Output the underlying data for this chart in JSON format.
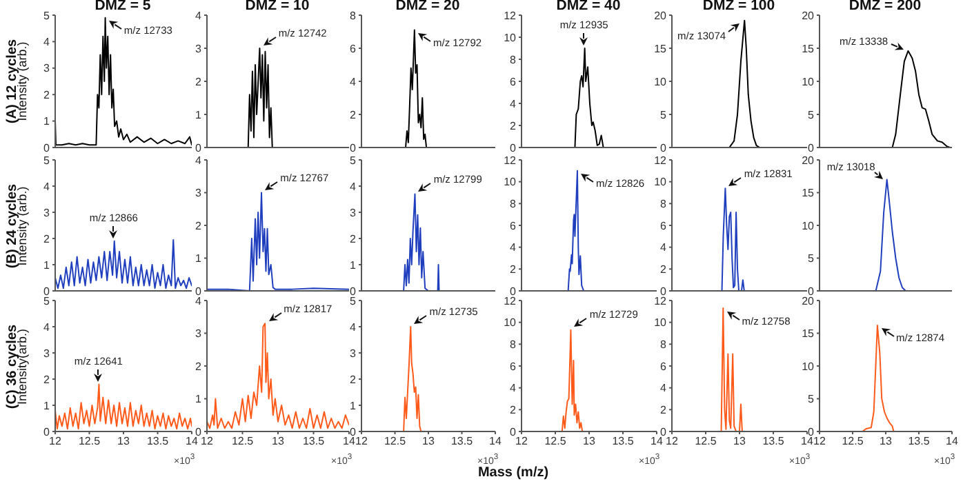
{
  "chart_data": [
    {
      "type": "line",
      "title": "DMZ = 5",
      "ylabel": "Intensity (arb.)",
      "color": "#000000",
      "xlim": [
        12,
        14
      ],
      "xticks": [
        12,
        12.5,
        13,
        13.5,
        14
      ],
      "ylim": [
        0,
        5
      ],
      "yticks": [
        0,
        1,
        2,
        3,
        4,
        5
      ],
      "tick_labels": "y",
      "annotations": [
        {
          "text": "m/z 12733",
          "x": 12.733,
          "y": 4.9
        },
        "(A) 12 cycles"
      ],
      "x": [
        12,
        12.01,
        12.1,
        12.2,
        12.3,
        12.4,
        12.5,
        12.6,
        12.62,
        12.64,
        12.66,
        12.68,
        12.7,
        12.72,
        12.733,
        12.75,
        12.77,
        12.79,
        12.81,
        12.83,
        12.85,
        12.87,
        12.9,
        12.93,
        12.96,
        13,
        13.05,
        13.1,
        13.2,
        13.3,
        13.4,
        13.5,
        13.6,
        13.7,
        13.8,
        13.9,
        13.97,
        14
      ],
      "values": [
        1,
        0.1,
        0.1,
        0.15,
        0.1,
        0.15,
        0.1,
        0.1,
        2,
        1.5,
        3.5,
        2,
        4.2,
        2.5,
        4.9,
        3,
        4.2,
        2,
        3.5,
        1.5,
        2.2,
        0.8,
        1,
        0.4,
        0.7,
        0.3,
        0.5,
        0.2,
        0.4,
        0.2,
        0.35,
        0.15,
        0.3,
        0.15,
        0.25,
        0.15,
        0.4,
        0.1
      ]
    },
    {
      "type": "line",
      "title": "DMZ = 10",
      "color": "#000000",
      "xlim": [
        12,
        14
      ],
      "xticks": [
        12,
        12.5,
        13,
        13.5,
        14
      ],
      "ylim": [
        0,
        4
      ],
      "yticks": [
        0,
        1,
        2,
        3,
        4
      ],
      "tick_labels": "y",
      "annotations": [
        {
          "text": "m/z 12742",
          "x": 12.742,
          "y": 3
        }
      ],
      "x": [
        12.58,
        12.6,
        12.62,
        12.64,
        12.66,
        12.68,
        12.7,
        12.742,
        12.76,
        12.78,
        12.8,
        12.82,
        12.84,
        12.86,
        12.88,
        12.9,
        12.92
      ],
      "values": [
        0,
        1.6,
        0.5,
        2.3,
        0.3,
        2.5,
        1,
        3,
        1.5,
        2.8,
        0.8,
        2.9,
        1.2,
        2.5,
        0.3,
        1.2,
        0
      ]
    },
    {
      "type": "line",
      "title": "DMZ = 20",
      "color": "#000000",
      "xlim": [
        12,
        14
      ],
      "xticks": [
        12,
        12.5,
        13,
        13.5,
        14
      ],
      "ylim": [
        0,
        8
      ],
      "yticks": [
        0,
        2,
        4,
        6,
        8
      ],
      "tick_labels": "y",
      "annotations": [
        {
          "text": "m/z 12792",
          "x": 12.792,
          "y": 7.1
        }
      ],
      "x": [
        12.66,
        12.68,
        12.7,
        12.72,
        12.74,
        12.76,
        12.792,
        12.81,
        12.83,
        12.85,
        12.87,
        12.89,
        12.91,
        12.93,
        12.95,
        12.97
      ],
      "values": [
        0,
        1,
        0.3,
        2.5,
        4.8,
        3.5,
        7.1,
        4.5,
        5,
        1.5,
        2,
        1.2,
        3,
        0.5,
        0.8,
        0
      ]
    },
    {
      "type": "line",
      "title": "DMZ = 40",
      "color": "#000000",
      "xlim": [
        12,
        14
      ],
      "xticks": [
        12,
        12.5,
        13,
        13.5,
        14
      ],
      "ylim": [
        0,
        12
      ],
      "yticks": [
        0,
        2,
        4,
        6,
        8,
        10,
        12
      ],
      "tick_labels": "y",
      "annotations": [
        {
          "text": "m/z 12935",
          "x": 12.935,
          "y": 9
        }
      ],
      "x": [
        12.79,
        12.81,
        12.84,
        12.87,
        12.89,
        12.91,
        12.935,
        12.95,
        12.98,
        13.01,
        13.04,
        13.06,
        13.09,
        13.12,
        13.15,
        13.18,
        13.21
      ],
      "values": [
        0,
        3,
        3.5,
        6,
        6.5,
        5.5,
        9,
        6,
        7.3,
        4,
        2,
        2.3,
        1.5,
        0.2,
        0.3,
        1.1,
        0
      ]
    },
    {
      "type": "line",
      "title": "DMZ = 100",
      "color": "#000000",
      "xlim": [
        12,
        14
      ],
      "xticks": [
        12,
        12.5,
        13,
        13.5,
        14
      ],
      "ylim": [
        0,
        20
      ],
      "yticks": [
        0,
        5,
        10,
        15,
        20
      ],
      "tick_labels": "y",
      "annotations": [
        {
          "text": "m/z 13074",
          "x": 13.074,
          "y": 19.2
        }
      ],
      "x": [
        12.85,
        12.92,
        12.97,
        13.02,
        13.074,
        13.1,
        13.13,
        13.17,
        13.21,
        13.25,
        13.3
      ],
      "values": [
        0,
        1,
        5,
        13,
        19.2,
        15,
        8,
        4,
        1.5,
        0.3,
        0
      ]
    },
    {
      "type": "line",
      "title": "DMZ = 200",
      "color": "#000000",
      "xlim": [
        12,
        14
      ],
      "xticks": [
        12,
        12.5,
        13,
        13.5,
        14
      ],
      "ylim": [
        0,
        20
      ],
      "yticks": [
        0,
        5,
        10,
        15,
        20
      ],
      "tick_labels": "y",
      "annotations": [
        {
          "text": "m/z 13338",
          "x": 13.338,
          "y": 14.6
        }
      ],
      "x": [
        13.1,
        13.15,
        13.22,
        13.28,
        13.338,
        13.4,
        13.45,
        13.5,
        13.55,
        13.6,
        13.65,
        13.7,
        13.78,
        13.85,
        13.92,
        13.97
      ],
      "values": [
        0,
        2,
        8,
        13,
        14.6,
        13.5,
        11.5,
        8,
        6,
        5.8,
        4,
        2,
        1,
        0.8,
        0.2,
        0
      ]
    },
    {
      "type": "line",
      "ylabel": "Intensity (arb.)",
      "color": "#1f3fbf",
      "xlim": [
        12,
        14
      ],
      "xticks": [
        12,
        12.5,
        13,
        13.5,
        14
      ],
      "ylim": [
        0,
        5
      ],
      "yticks": [
        0,
        1,
        2,
        3,
        4,
        5
      ],
      "tick_labels": "y",
      "annotations": [
        {
          "text": "m/z 12866",
          "x": 12.866,
          "y": 1.9
        },
        "(B) 24 cycles"
      ],
      "x": [
        12,
        12.04,
        12.08,
        12.12,
        12.16,
        12.2,
        12.24,
        12.28,
        12.32,
        12.36,
        12.4,
        12.44,
        12.48,
        12.52,
        12.56,
        12.6,
        12.64,
        12.68,
        12.72,
        12.76,
        12.8,
        12.84,
        12.866,
        12.9,
        12.94,
        12.98,
        13.02,
        13.06,
        13.1,
        13.14,
        13.18,
        13.22,
        13.26,
        13.3,
        13.34,
        13.38,
        13.42,
        13.46,
        13.5,
        13.54,
        13.58,
        13.62,
        13.66,
        13.7,
        13.73,
        13.76,
        13.8,
        13.84,
        13.88,
        13.92,
        13.96,
        14
      ],
      "values": [
        0.5,
        0.1,
        0.6,
        0.1,
        0.9,
        0.2,
        1.1,
        0.2,
        1.3,
        0.3,
        0.9,
        0.2,
        1.2,
        0.3,
        1.1,
        0.4,
        1.3,
        0.5,
        1.5,
        0.4,
        1.5,
        0.6,
        1.9,
        0.5,
        1.5,
        0.3,
        1.2,
        0.3,
        1.3,
        0.2,
        0.9,
        0.2,
        1,
        0.2,
        0.8,
        0.2,
        1,
        0.1,
        0.7,
        0.2,
        1,
        0.1,
        0.6,
        0.2,
        1.95,
        0.1,
        0.5,
        0.2,
        0.4,
        0.1,
        0.5,
        0.2
      ]
    },
    {
      "type": "line",
      "color": "#1f3fbf",
      "xlim": [
        12,
        14
      ],
      "xticks": [
        12,
        12.5,
        13,
        13.5,
        14
      ],
      "ylim": [
        0,
        4
      ],
      "yticks": [
        0,
        1,
        2,
        3,
        4
      ],
      "tick_labels": "y",
      "annotations": [
        {
          "text": "m/z 12767",
          "x": 12.767,
          "y": 3
        }
      ],
      "x": [
        12,
        12.3,
        12.6,
        12.63,
        12.65,
        12.68,
        12.7,
        12.72,
        12.74,
        12.767,
        12.79,
        12.81,
        12.83,
        12.85,
        12.87,
        12.9,
        12.93,
        12.96,
        13.2,
        13.5,
        14
      ],
      "values": [
        0.05,
        0.05,
        0,
        1.6,
        0.3,
        2.2,
        0.8,
        2.4,
        1,
        3,
        1.2,
        1.9,
        0.6,
        1.9,
        0.5,
        0.8,
        0.1,
        0.05,
        0.05,
        0.08,
        0.05
      ]
    },
    {
      "type": "line",
      "color": "#1f3fbf",
      "xlim": [
        12,
        14
      ],
      "xticks": [
        12,
        12.5,
        13,
        13.5,
        14
      ],
      "ylim": [
        0,
        5
      ],
      "yticks": [
        0,
        1,
        2,
        3,
        4,
        5
      ],
      "tick_labels": "y",
      "annotations": [
        {
          "text": "m/z 12799",
          "x": 12.799,
          "y": 3.7
        }
      ],
      "x": [
        12.63,
        12.65,
        12.67,
        12.69,
        12.71,
        12.73,
        12.75,
        12.77,
        12.799,
        12.82,
        12.84,
        12.86,
        12.88,
        12.9,
        12.92,
        12.95,
        13,
        13.14,
        13.15,
        13.16
      ],
      "values": [
        0,
        1,
        0.2,
        1.2,
        0.3,
        2,
        1,
        2.3,
        3.7,
        1.5,
        2.9,
        1,
        2.4,
        0.5,
        1.5,
        0.1,
        0,
        0,
        1,
        0
      ]
    },
    {
      "type": "line",
      "color": "#1f3fbf",
      "xlim": [
        12,
        14
      ],
      "xticks": [
        12,
        12.5,
        13,
        13.5,
        14
      ],
      "ylim": [
        0,
        12
      ],
      "yticks": [
        0,
        2,
        4,
        6,
        8,
        10,
        12
      ],
      "tick_labels": "y",
      "annotations": [
        {
          "text": "m/z 12826",
          "x": 12.826,
          "y": 11
        }
      ],
      "x": [
        12.69,
        12.71,
        12.72,
        12.74,
        12.75,
        12.77,
        12.78,
        12.79,
        12.826,
        12.84,
        12.85,
        12.87,
        12.89,
        12.92
      ],
      "values": [
        0,
        2,
        1.8,
        3.3,
        2.5,
        6.5,
        7,
        5,
        11,
        4,
        1.5,
        3.2,
        0.5,
        0
      ]
    },
    {
      "type": "line",
      "color": "#1f3fbf",
      "xlim": [
        12,
        14
      ],
      "xticks": [
        12,
        12.5,
        13,
        13.5,
        14
      ],
      "ylim": [
        0,
        12
      ],
      "yticks": [
        0,
        2,
        4,
        6,
        8,
        10,
        12
      ],
      "tick_labels": "y",
      "annotations": [
        {
          "text": "m/z 12831",
          "x": 12.79,
          "y": 9.4
        }
      ],
      "x": [
        12.74,
        12.76,
        12.79,
        12.81,
        12.83,
        12.85,
        12.87,
        12.89,
        12.91,
        12.93,
        12.95,
        12.97,
        12.99,
        13.03,
        13.05,
        13.07
      ],
      "values": [
        0,
        5,
        9.4,
        6,
        3.8,
        6.8,
        7.2,
        3,
        0.3,
        0.5,
        7.2,
        2,
        0,
        0,
        1,
        0
      ]
    },
    {
      "type": "line",
      "color": "#1f3fbf",
      "xlim": [
        12,
        14
      ],
      "xticks": [
        12,
        12.5,
        13,
        13.5,
        14
      ],
      "ylim": [
        0,
        20
      ],
      "yticks": [
        0,
        5,
        10,
        15,
        20
      ],
      "tick_labels": "y",
      "annotations": [
        {
          "text": "m/z 13018",
          "x": 13.018,
          "y": 17
        }
      ],
      "x": [
        12.85,
        12.92,
        12.97,
        13.018,
        13.05,
        13.1,
        13.15,
        13.2,
        13.25,
        13.3
      ],
      "values": [
        0,
        3,
        12,
        17,
        14,
        9,
        5,
        2,
        0.5,
        0
      ]
    },
    {
      "type": "line",
      "ylabel": "Intensity(arb.)",
      "color": "#ff5a1a",
      "xlim": [
        12,
        14
      ],
      "xticks": [
        12,
        12.5,
        13,
        13.5,
        14
      ],
      "ylim": [
        0,
        5
      ],
      "yticks": [
        0,
        1,
        2,
        3,
        4,
        5
      ],
      "annotations": [
        {
          "text": "m/z 12641",
          "x": 12.641,
          "y": 1.8
        },
        "(C) 36 cycles",
        "×10$^{3}$"
      ],
      "x": [
        12,
        12.03,
        12.06,
        12.1,
        12.14,
        12.18,
        12.22,
        12.26,
        12.3,
        12.34,
        12.38,
        12.42,
        12.46,
        12.5,
        12.54,
        12.58,
        12.62,
        12.641,
        12.66,
        12.7,
        12.74,
        12.78,
        12.82,
        12.86,
        12.9,
        12.94,
        12.98,
        13.02,
        13.06,
        13.1,
        13.14,
        13.18,
        13.22,
        13.26,
        13.3,
        13.34,
        13.38,
        13.42,
        13.46,
        13.5,
        13.54,
        13.58,
        13.62,
        13.66,
        13.7,
        13.74,
        13.78,
        13.82,
        13.86,
        13.9,
        13.94,
        13.98,
        14
      ],
      "values": [
        0.8,
        0.1,
        0.6,
        0.2,
        0.7,
        0.1,
        0.9,
        0.2,
        0.7,
        0.1,
        1.1,
        0.3,
        0.8,
        0.2,
        1,
        0.3,
        0.9,
        1.8,
        0.4,
        1.3,
        0.3,
        1.2,
        0.3,
        1,
        0.2,
        1.1,
        0.3,
        0.9,
        0.2,
        1.1,
        0.2,
        0.8,
        0.3,
        1,
        0.2,
        0.7,
        0.2,
        0.8,
        0.1,
        0.6,
        0.2,
        0.7,
        0.1,
        0.6,
        0.2,
        0.5,
        0.1,
        0.7,
        0.2,
        0.5,
        0.1,
        0.5,
        0.2
      ]
    },
    {
      "type": "line",
      "color": "#ff5a1a",
      "xlim": [
        12,
        14
      ],
      "xticks": [
        12,
        12.5,
        13,
        13.5,
        14
      ],
      "ylim": [
        0,
        4
      ],
      "yticks": [
        0,
        1,
        2,
        3,
        4
      ],
      "annotations": [
        {
          "text": "m/z 12817",
          "x": 12.817,
          "y": 3.3
        },
        "×10$^{3}$"
      ],
      "x": [
        12,
        12.04,
        12.08,
        12.1,
        12.12,
        12.15,
        12.2,
        12.25,
        12.3,
        12.35,
        12.4,
        12.45,
        12.5,
        12.54,
        12.58,
        12.62,
        12.66,
        12.7,
        12.74,
        12.77,
        12.79,
        12.817,
        12.83,
        12.85,
        12.87,
        12.9,
        12.93,
        12.96,
        13,
        13.05,
        13.1,
        13.15,
        13.2,
        13.25,
        13.3,
        13.35,
        13.4,
        13.45,
        13.5,
        13.55,
        13.6,
        13.65,
        13.7,
        13.75,
        13.8,
        13.85,
        13.9,
        13.95,
        14
      ],
      "values": [
        0.3,
        0.1,
        0.5,
        0.2,
        1,
        0.1,
        0.4,
        0.1,
        0.3,
        0.1,
        0.6,
        0.2,
        1,
        0.3,
        1.1,
        0.4,
        1.2,
        0.8,
        2,
        1.2,
        3.2,
        3.3,
        1.5,
        2.4,
        1,
        1.6,
        0.5,
        1,
        0.3,
        0.8,
        0.2,
        0.5,
        0.1,
        0.6,
        0.1,
        0.4,
        0.1,
        0.7,
        0.1,
        0.5,
        0.1,
        0.6,
        0.1,
        0.4,
        0.1,
        0.3,
        0.1,
        0.5,
        0.2
      ]
    },
    {
      "type": "line",
      "xlabel": "Mass (m/z)",
      "color": "#ff5a1a",
      "xlim": [
        12,
        14
      ],
      "xticks": [
        12,
        12.5,
        13,
        13.5,
        14
      ],
      "ylim": [
        0,
        5
      ],
      "yticks": [
        0,
        1,
        2,
        3,
        4,
        5
      ],
      "annotations": [
        {
          "text": "m/z 12735",
          "x": 12.735,
          "y": 4
        },
        "×10$^{3}$"
      ],
      "x": [
        12.63,
        12.65,
        12.67,
        12.69,
        12.71,
        12.735,
        12.75,
        12.77,
        12.79,
        12.81,
        12.83,
        12.85,
        12.87,
        12.89
      ],
      "values": [
        0,
        1.3,
        0.5,
        1.5,
        2.5,
        4,
        2.6,
        2.2,
        1.5,
        1.7,
        0.5,
        1.4,
        0.2,
        0
      ]
    },
    {
      "type": "line",
      "color": "#ff5a1a",
      "xlim": [
        12,
        14
      ],
      "xticks": [
        12,
        12.5,
        13,
        13.5,
        14
      ],
      "ylim": [
        0,
        12
      ],
      "yticks": [
        0,
        2,
        4,
        6,
        8,
        10,
        12
      ],
      "annotations": [
        {
          "text": "m/z 12729",
          "x": 12.729,
          "y": 9.3
        },
        "×10$^{3}$"
      ],
      "x": [
        12.6,
        12.62,
        12.64,
        12.66,
        12.68,
        12.7,
        12.729,
        12.75,
        12.77,
        12.78,
        12.8,
        12.82,
        12.84,
        12.86,
        12.88,
        12.9
      ],
      "values": [
        0,
        1.4,
        0.3,
        1.8,
        2.8,
        3,
        9.3,
        2.5,
        6.5,
        1.5,
        2.5,
        0.8,
        1.8,
        0.3,
        0.8,
        0
      ]
    },
    {
      "type": "line",
      "color": "#ff5a1a",
      "xlim": [
        12,
        14
      ],
      "xticks": [
        12,
        12.5,
        13,
        13.5,
        14
      ],
      "ylim": [
        0,
        12
      ],
      "yticks": [
        0,
        2,
        4,
        6,
        8,
        10,
        12
      ],
      "annotations": [
        {
          "text": "m/z 12758",
          "x": 12.758,
          "y": 11.3
        },
        "×10$^{3}$"
      ],
      "x": [
        12.73,
        12.758,
        12.78,
        12.8,
        12.83,
        12.85,
        12.87,
        12.9,
        12.92,
        12.95,
        13,
        13.02,
        13.04
      ],
      "values": [
        0,
        11.3,
        2,
        0.2,
        7.1,
        1,
        0.3,
        7.1,
        0.5,
        0,
        0,
        2.5,
        0
      ]
    },
    {
      "type": "line",
      "color": "#ff5a1a",
      "xlim": [
        12,
        14
      ],
      "xticks": [
        12,
        12.5,
        13,
        13.5,
        14
      ],
      "ylim": [
        0,
        20
      ],
      "yticks": [
        0,
        5,
        10,
        15,
        20
      ],
      "annotations": [
        {
          "text": "m/z 12874",
          "x": 12.874,
          "y": 16.2
        },
        "×10$^{3}$"
      ],
      "x": [
        12.65,
        12.7,
        12.78,
        12.82,
        12.874,
        12.91,
        12.94,
        12.98,
        13.02,
        13.06,
        13.1,
        13.12
      ],
      "values": [
        0,
        0.4,
        0.6,
        3,
        16.2,
        12,
        5,
        3,
        2,
        1.3,
        0.8,
        0
      ]
    }
  ]
}
